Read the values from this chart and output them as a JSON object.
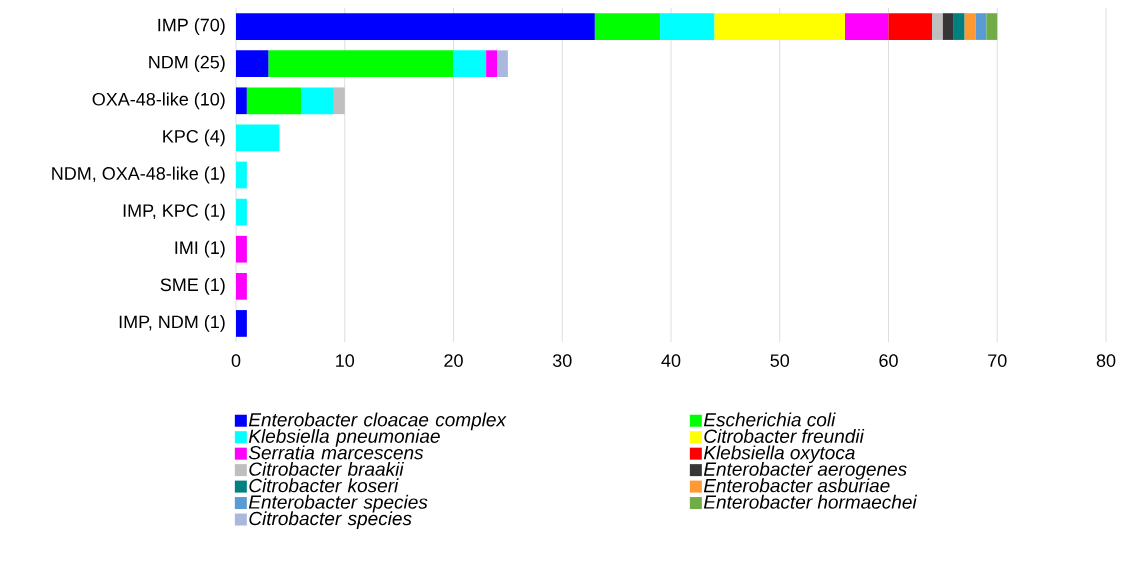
{
  "chart_data": {
    "type": "bar",
    "orientation": "horizontal",
    "stacked": true,
    "categories": [
      "IMP (70)",
      "NDM (25)",
      "OXA-48-like (10)",
      "KPC (4)",
      "NDM, OXA-48-like (1)",
      "IMP, KPC (1)",
      "IMI (1)",
      "SME (1)",
      "IMP, NDM (1)"
    ],
    "series": [
      {
        "name": "*Enterobacter cloacae complex*",
        "color": "#0000ff",
        "values": [
          33,
          3,
          1,
          null,
          null,
          null,
          null,
          null,
          1
        ]
      },
      {
        "name": "*Escherichia coli*",
        "color": "#00ff00",
        "values": [
          6,
          17,
          5,
          null,
          null,
          null,
          null,
          null,
          null
        ]
      },
      {
        "name": "*Klebsiella pneumoniae*",
        "color": "#00ffff",
        "values": [
          5,
          3,
          3,
          4,
          1,
          1,
          null,
          null,
          null
        ]
      },
      {
        "name": "*Citrobacter freundii*",
        "color": "#ffff00",
        "values": [
          12,
          null,
          null,
          null,
          null,
          null,
          null,
          null,
          null
        ]
      },
      {
        "name": "*Serratia marcescens*",
        "color": "#ff00ff",
        "values": [
          4,
          1,
          null,
          null,
          null,
          null,
          1,
          1,
          null
        ]
      },
      {
        "name": "*Klebsiella oxytoca*",
        "color": "#ff0000",
        "values": [
          4,
          null,
          null,
          null,
          null,
          null,
          null,
          null,
          null
        ]
      },
      {
        "name": "*Citrobacter braakii*",
        "color": "#bfbfbf",
        "values": [
          1,
          null,
          1,
          null,
          null,
          null,
          null,
          null,
          null
        ]
      },
      {
        "name": "*Enterobacter aerogenes*",
        "color": "#363636",
        "values": [
          1,
          null,
          null,
          null,
          null,
          null,
          null,
          null,
          null
        ]
      },
      {
        "name": "*Citrobacter koseri*",
        "color": "#008080",
        "values": [
          1,
          null,
          null,
          null,
          null,
          null,
          null,
          null,
          null
        ]
      },
      {
        "name": "*Enterobacter asburiae*",
        "color": "#ff9933",
        "values": [
          1,
          null,
          null,
          null,
          null,
          null,
          null,
          null,
          null
        ]
      },
      {
        "name": "*Enterobacter species*",
        "color": "#5b9bd5",
        "values": [
          1,
          null,
          null,
          null,
          null,
          null,
          null,
          null,
          null
        ]
      },
      {
        "name": "*Enterobacter hormaechei*",
        "color": "#70ad47",
        "values": [
          1,
          null,
          null,
          null,
          null,
          null,
          null,
          null,
          null
        ]
      },
      {
        "name": "*Citrobacter species*",
        "color": "#a9b8dc",
        "values": [
          null,
          1,
          null,
          null,
          null,
          null,
          null,
          null,
          null
        ]
      }
    ],
    "xlim": [
      0,
      80
    ],
    "xticks": [
      0,
      10,
      20,
      30,
      40,
      50,
      60,
      70,
      80
    ],
    "grid": "x",
    "legend": "bottom"
  }
}
